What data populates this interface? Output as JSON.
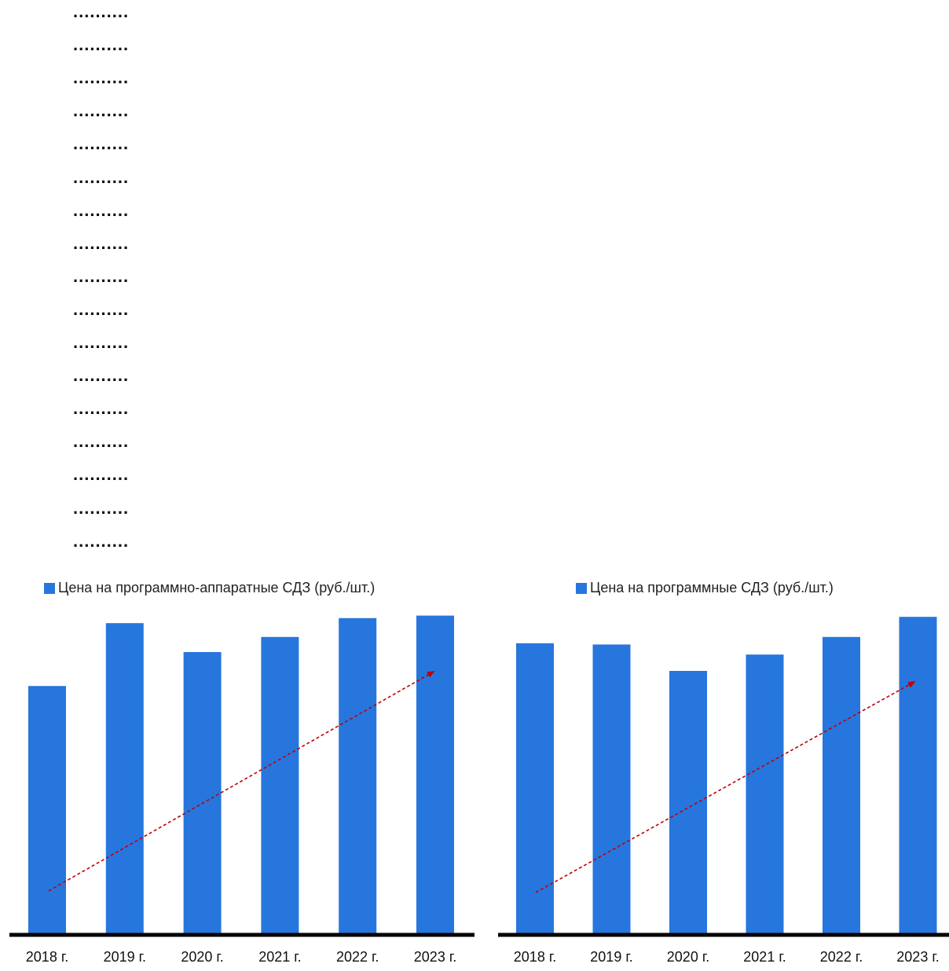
{
  "filler_dots": [
    "..........",
    "..........",
    "..........",
    "..........",
    "..........",
    "..........",
    "..........",
    "..........",
    "..........",
    "..........",
    "..........",
    "..........",
    "..........",
    "..........",
    "..........",
    "..........",
    ".........."
  ],
  "colors": {
    "bar": "#2776DE",
    "trend_arrow": "#C00000",
    "axis": "#000000"
  },
  "chart_data": [
    {
      "type": "bar",
      "title": "",
      "legend": "Цена на программно-аппаратные СДЗ (руб./шт.)",
      "legend_position": "top-left",
      "categories": [
        "2018 г.",
        "2019 г.",
        "2020 г.",
        "2021 г.",
        "2022 г.",
        "2023 г."
      ],
      "values": [
        198,
        248,
        225,
        237,
        252,
        254
      ],
      "ylim": [
        0,
        300
      ],
      "grid": false,
      "trend_arrow": "rising, dashed red"
    },
    {
      "type": "bar",
      "title": "",
      "legend": "Цена на программные СДЗ (руб./шт.)",
      "legend_position": "top-left",
      "categories": [
        "2018 г.",
        "2019 г.",
        "2020 г.",
        "2021 г.",
        "2022 г.",
        "2023 г."
      ],
      "values": [
        232,
        231,
        210,
        223,
        237,
        253
      ],
      "ylim": [
        0,
        300
      ],
      "grid": false,
      "trend_arrow": "rising, dashed red"
    }
  ]
}
